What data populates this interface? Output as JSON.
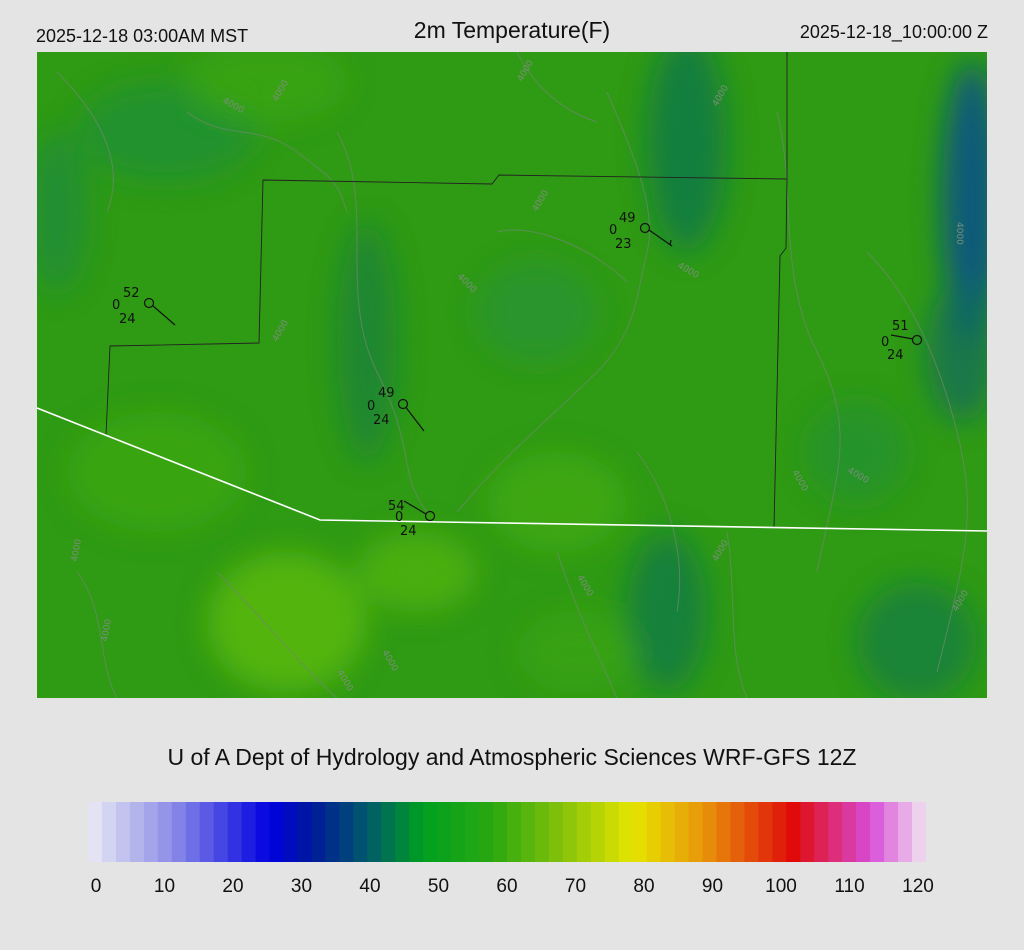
{
  "header": {
    "local_time": "2025-12-18 03:00AM MST",
    "title": "2m Temperature(F)",
    "valid_time": "2025-12-18_10:00:00 Z"
  },
  "credit": "U of A Dept of Hydrology and Atmospheric Sciences WRF-GFS 12Z",
  "colorbar": {
    "min": 0,
    "max": 120,
    "ticks": [
      "0",
      "10",
      "20",
      "30",
      "40",
      "50",
      "60",
      "70",
      "80",
      "90",
      "100",
      "110",
      "120"
    ],
    "stops": [
      {
        "value": 0,
        "color": "#ebebf5"
      },
      {
        "value": 12,
        "color": "#8c8ce8"
      },
      {
        "value": 26,
        "color": "#0000e0"
      },
      {
        "value": 32,
        "color": "#00189c"
      },
      {
        "value": 40,
        "color": "#005a6a"
      },
      {
        "value": 48,
        "color": "#00a020"
      },
      {
        "value": 58,
        "color": "#2aa810"
      },
      {
        "value": 68,
        "color": "#86c20a"
      },
      {
        "value": 78,
        "color": "#e6e600"
      },
      {
        "value": 88,
        "color": "#e8960a"
      },
      {
        "value": 101,
        "color": "#e00a0a"
      },
      {
        "value": 112,
        "color": "#d84cd8"
      },
      {
        "value": 120,
        "color": "#f0e4f0"
      }
    ]
  },
  "map": {
    "contour_label": "4000",
    "colors": {
      "field_base": "#2f9a14",
      "field_dark": "#0c7a46",
      "field_light": "#52b40e",
      "county_line": "#222222",
      "border_line": "#ffffff",
      "contour": "#6c8a6c"
    }
  },
  "stations": [
    {
      "temp": "52",
      "dew": "24",
      "gust": "0"
    },
    {
      "temp": "49",
      "dew": "23",
      "gust": "0"
    },
    {
      "temp": "51",
      "dew": "24",
      "gust": "0"
    },
    {
      "temp": "49",
      "dew": "24",
      "gust": "0"
    },
    {
      "temp": "54",
      "dew": "24",
      "gust": "0"
    }
  ]
}
